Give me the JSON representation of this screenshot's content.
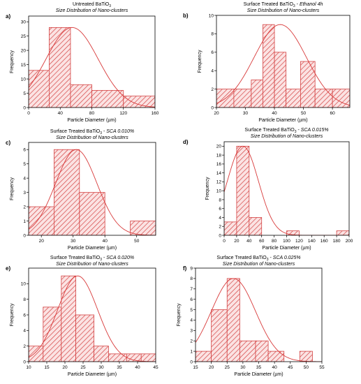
{
  "colors": {
    "bar_fill": "#fbe3e3",
    "hatch": "#d44444",
    "curve": "#d83a3a",
    "axis": "#000000"
  },
  "chart_data": [
    {
      "panel": "a)",
      "type": "bar",
      "title": "Untreated BaTiO",
      "title_sub": "3",
      "title_tail": "",
      "subtitle": "Size Distribution of Nano-clusters",
      "xlabel": "Particle Diameter (µm)",
      "ylabel": "Frequency",
      "xlim": [
        0,
        160
      ],
      "ylim": [
        0,
        32
      ],
      "xticks": [
        0,
        40,
        80,
        120,
        160
      ],
      "yticks": [
        0,
        5,
        10,
        15,
        20,
        25,
        30
      ],
      "bins": [
        [
          0,
          26,
          13
        ],
        [
          26,
          53,
          28
        ],
        [
          53,
          80,
          8
        ],
        [
          80,
          120,
          6
        ],
        [
          120,
          160,
          4
        ]
      ],
      "fit": {
        "mean": 55,
        "sd": 33,
        "peak": 28
      }
    },
    {
      "panel": "b)",
      "type": "bar",
      "title": "Surface Treated BaTiO",
      "title_sub": "3",
      "title_tail": " - Ethanol 4h",
      "subtitle": "Size Distribution of Nano-clusters",
      "xlabel": "Particle Diameter (µm)",
      "ylabel": "Frequency",
      "xlim": [
        20,
        66
      ],
      "ylim": [
        0,
        10
      ],
      "xticks": [
        20,
        30,
        40,
        50,
        60
      ],
      "yticks": [
        0,
        2,
        4,
        6,
        8,
        10
      ],
      "bins": [
        [
          20,
          26,
          2
        ],
        [
          26,
          32,
          2
        ],
        [
          32,
          36,
          3
        ],
        [
          36,
          40,
          9
        ],
        [
          40,
          44,
          6
        ],
        [
          44,
          49,
          2
        ],
        [
          49,
          54,
          5
        ],
        [
          54,
          60,
          2
        ],
        [
          60,
          66,
          2
        ]
      ],
      "fit": {
        "mean": 42,
        "sd": 9,
        "peak": 9
      }
    },
    {
      "panel": "c)",
      "type": "bar",
      "title": "Surface Treated BaTiO",
      "title_sub": "3",
      "title_tail": " - SCA 0.010%",
      "subtitle": "Size Distribution of Nano-clusters",
      "xlabel": "Particle Diameter (µm)",
      "ylabel": "Frequency",
      "xlim": [
        16,
        56
      ],
      "ylim": [
        0,
        6.5
      ],
      "xticks": [
        20,
        30,
        40,
        50
      ],
      "yticks": [
        0,
        1,
        2,
        3,
        4,
        5,
        6
      ],
      "bins": [
        [
          16,
          24,
          2
        ],
        [
          24,
          32,
          6
        ],
        [
          32,
          40,
          3
        ],
        [
          40,
          48,
          0
        ],
        [
          48,
          56,
          1
        ]
      ],
      "fit": {
        "mean": 31,
        "sd": 6.5,
        "peak": 6
      }
    },
    {
      "panel": "d)",
      "type": "bar",
      "title": "Surface Treated BaTiO",
      "title_sub": "3",
      "title_tail": " - SCA 0.015%",
      "subtitle": "Size Distribution of Nano-clusters",
      "xlabel": "Particle Diameter (µm)",
      "ylabel": "Frequency",
      "xlim": [
        0,
        200
      ],
      "ylim": [
        0,
        21
      ],
      "xticks": [
        0,
        20,
        40,
        60,
        80,
        100,
        120,
        140,
        160,
        180,
        200
      ],
      "yticks": [
        0,
        2,
        4,
        6,
        8,
        10,
        12,
        14,
        16,
        18,
        20
      ],
      "bins": [
        [
          0,
          20,
          3
        ],
        [
          20,
          40,
          20
        ],
        [
          40,
          60,
          4
        ],
        [
          60,
          80,
          0
        ],
        [
          80,
          100,
          0
        ],
        [
          100,
          120,
          1
        ],
        [
          120,
          140,
          0
        ],
        [
          140,
          160,
          0
        ],
        [
          160,
          180,
          0
        ],
        [
          180,
          200,
          1
        ]
      ],
      "fit": {
        "mean": 30,
        "sd": 25,
        "peak": 20
      }
    },
    {
      "panel": "e)",
      "type": "bar",
      "title": "Surface Treated BaTiO",
      "title_sub": "3",
      "title_tail": " - SCA 0.020%",
      "subtitle": "Size Distribution of Nano-clusters",
      "xlabel": "Particle Diameter (µm)",
      "ylabel": "Frequency",
      "xlim": [
        10,
        45
      ],
      "ylim": [
        0,
        12
      ],
      "xticks": [
        10,
        15,
        20,
        25,
        30,
        35,
        40,
        45
      ],
      "yticks": [
        0,
        2,
        4,
        6,
        8,
        10
      ],
      "bins": [
        [
          10,
          14,
          2
        ],
        [
          14,
          19,
          7
        ],
        [
          19,
          23,
          11
        ],
        [
          23,
          28,
          6
        ],
        [
          28,
          32,
          2
        ],
        [
          32,
          37,
          1
        ],
        [
          37,
          41,
          1
        ],
        [
          41,
          45,
          1
        ]
      ],
      "fit": {
        "mean": 23.5,
        "sd": 5.5,
        "peak": 11
      }
    },
    {
      "panel": "f)",
      "type": "bar",
      "title": "Surface Treated BaTiO",
      "title_sub": "3",
      "title_tail": " - SCA 0.025%",
      "subtitle": "Size Distribution of Nano-clusters",
      "xlabel": "Particle Diameter (µm)",
      "ylabel": "Frequency",
      "xlim": [
        15,
        55
      ],
      "ylim": [
        0,
        9
      ],
      "xticks": [
        15,
        20,
        25,
        30,
        35,
        40,
        45,
        50,
        55
      ],
      "yticks": [
        0,
        1,
        2,
        3,
        4,
        5,
        6,
        7,
        8,
        9
      ],
      "bins": [
        [
          15,
          20,
          1
        ],
        [
          20,
          25,
          5
        ],
        [
          25,
          29,
          8
        ],
        [
          29,
          34,
          2
        ],
        [
          34,
          38,
          2
        ],
        [
          38,
          43,
          1
        ],
        [
          43,
          48,
          0
        ],
        [
          48,
          52,
          1
        ]
      ],
      "fit": {
        "mean": 27,
        "sd": 7,
        "peak": 8
      }
    }
  ]
}
